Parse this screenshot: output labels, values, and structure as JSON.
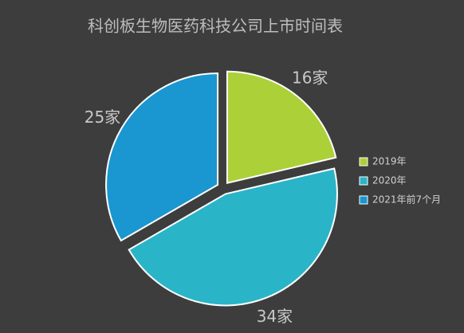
{
  "chart_data": {
    "type": "pie",
    "title": "科创板生物医药科技公司上市时间表",
    "categories": [
      "2019年",
      "2020年",
      "2021年前7个月"
    ],
    "values": [
      16,
      34,
      25
    ],
    "value_labels": [
      "16家",
      "34家",
      "25家"
    ],
    "colors": [
      "#acd038",
      "#2ab4c8",
      "#1a96d0"
    ],
    "legend": "right"
  }
}
